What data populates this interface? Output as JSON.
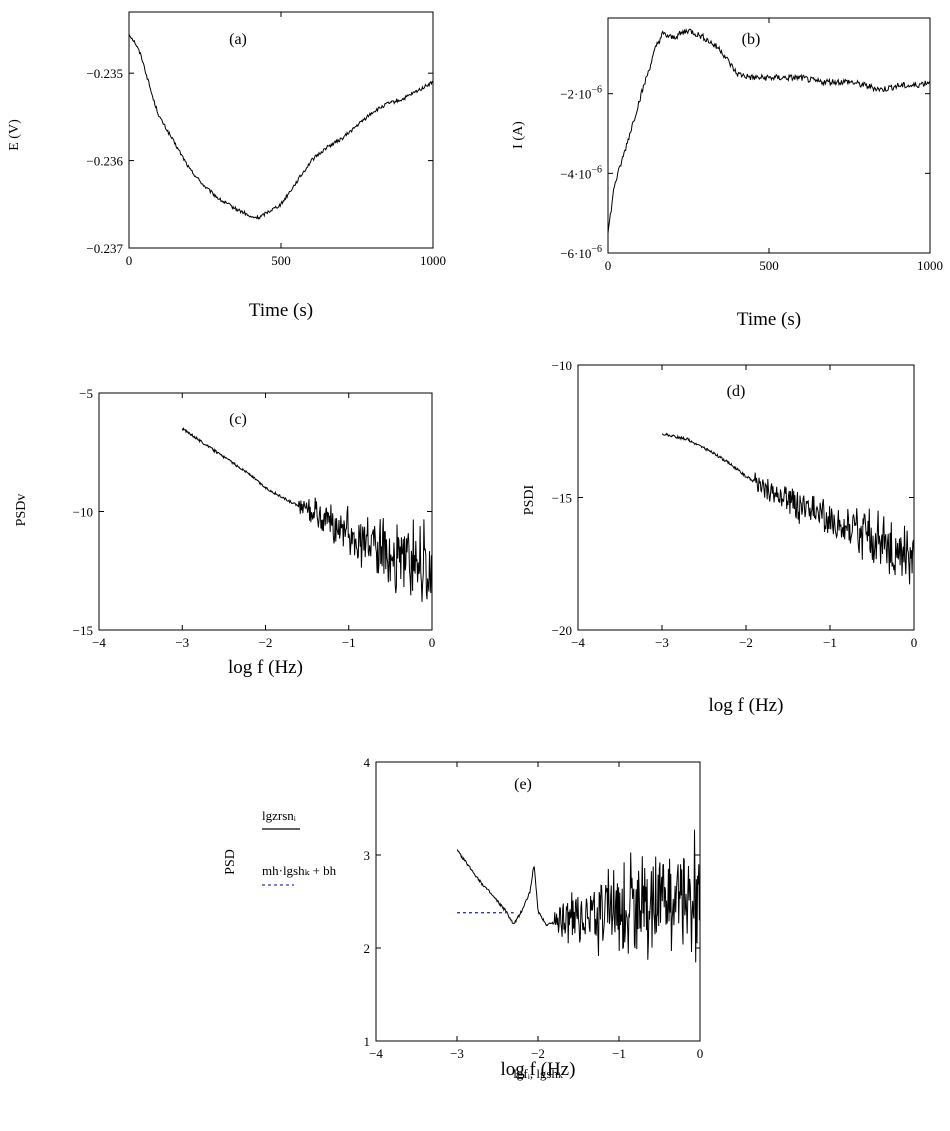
{
  "chart_data": [
    {
      "id": "a",
      "type": "line",
      "panel_label": "(a)",
      "xlabel": "Time (s)",
      "ylabel": "E (V)",
      "xlim": [
        0,
        1000
      ],
      "ylim": [
        -0.237,
        -0.2343
      ],
      "xticks": [
        0,
        500,
        1000
      ],
      "xtick_labels": [
        "0",
        "500",
        "1000"
      ],
      "yticks": [
        -0.237,
        -0.236,
        -0.235
      ],
      "ytick_labels": [
        "−0.237",
        "−0.236",
        "−0.235"
      ],
      "series": [
        {
          "values_x": [
            0,
            20,
            40,
            60,
            80,
            100,
            150,
            200,
            250,
            300,
            350,
            380,
            400,
            430,
            450,
            500,
            550,
            600,
            650,
            700,
            750,
            800,
            850,
            900,
            950,
            1000
          ],
          "values_y": [
            -0.23455,
            -0.23465,
            -0.2348,
            -0.23505,
            -0.2353,
            -0.2355,
            -0.2358,
            -0.2361,
            -0.2363,
            -0.23645,
            -0.23655,
            -0.2366,
            -0.23665,
            -0.23665,
            -0.2366,
            -0.2365,
            -0.23625,
            -0.236,
            -0.23585,
            -0.23575,
            -0.2356,
            -0.23545,
            -0.23535,
            -0.2353,
            -0.2352,
            -0.2351
          ],
          "noise": 2e-05
        }
      ]
    },
    {
      "id": "b",
      "type": "line",
      "panel_label": "(b)",
      "xlabel": "Time (s)",
      "ylabel": "I (A)",
      "xlim": [
        0,
        1000
      ],
      "ylim": [
        -6e-06,
        -1e-07
      ],
      "xticks": [
        0,
        500,
        1000
      ],
      "xtick_labels": [
        "0",
        "500",
        "1000"
      ],
      "yticks": [
        -6e-06,
        -4e-06,
        -2e-06
      ],
      "ytick_labels": [
        "−6·10",
        "−4·10",
        "−2·10"
      ],
      "ytick_exponent": "−6",
      "series": [
        {
          "values_x": [
            0,
            20,
            50,
            100,
            150,
            170,
            200,
            250,
            300,
            350,
            400,
            450,
            500,
            550,
            600,
            650,
            700,
            750,
            800,
            850,
            900,
            950,
            1000
          ],
          "values_y": [
            -5.5e-06,
            -4.3e-06,
            -3.5e-06,
            -2.1e-06,
            -8e-07,
            -5e-07,
            -6e-07,
            -4e-07,
            -6e-07,
            -9e-07,
            -1.5e-06,
            -1.6e-06,
            -1.6e-06,
            -1.6e-06,
            -1.6e-06,
            -1.7e-06,
            -1.7e-06,
            -1.7e-06,
            -1.8e-06,
            -1.9e-06,
            -1.8e-06,
            -1.8e-06,
            -1.7e-06
          ],
          "noise": 8e-08
        }
      ]
    },
    {
      "id": "c",
      "type": "line",
      "panel_label": "(c)",
      "xlabel": "log f (Hz)",
      "ylabel": "PSDv",
      "xlim": [
        -4,
        0
      ],
      "ylim": [
        -15,
        -5
      ],
      "xticks": [
        -4,
        -3,
        -2,
        -1,
        0
      ],
      "xtick_labels": [
        "−4",
        "−3",
        "−2",
        "−1",
        "0"
      ],
      "yticks": [
        -15,
        -10,
        -5
      ],
      "ytick_labels": [
        "−15",
        "−10",
        "−5"
      ],
      "series": [
        {
          "values_x": [
            -3,
            -2.5,
            -2.2,
            -2.0,
            -1.7,
            -1.3,
            -1.0,
            -0.5,
            0
          ],
          "values_y": [
            -6.5,
            -7.7,
            -8.4,
            -9.0,
            -9.6,
            -10.3,
            -10.9,
            -11.8,
            -12.2
          ],
          "noise_start": -1.6,
          "noise_amp": 2.2
        }
      ]
    },
    {
      "id": "d",
      "type": "line",
      "panel_label": "(d)",
      "xlabel": "log f (Hz)",
      "ylabel": "PSDI",
      "xlim": [
        -4,
        0
      ],
      "ylim": [
        -20,
        -10
      ],
      "xticks": [
        -4,
        -3,
        -2,
        -1,
        0
      ],
      "xtick_labels": [
        "−4",
        "−3",
        "−2",
        "−1",
        "0"
      ],
      "yticks": [
        -20,
        -15,
        -10
      ],
      "ytick_labels": [
        "−20",
        "−15",
        "−10"
      ],
      "series": [
        {
          "values_x": [
            -3,
            -2.7,
            -2.4,
            -2.2,
            -2.0,
            -1.7,
            -1.3,
            -1.0,
            -0.5,
            0
          ],
          "values_y": [
            -12.6,
            -12.8,
            -13.3,
            -13.7,
            -14.2,
            -14.8,
            -15.4,
            -15.9,
            -16.6,
            -17.2
          ],
          "noise_start": -1.9,
          "noise_amp": 1.6
        }
      ]
    },
    {
      "id": "e",
      "type": "line",
      "panel_label": "(e)",
      "xlabel": "lgfᵢ, lgshₖ",
      "xlabel2": "log f (Hz)",
      "ylabel": "PSD",
      "legend": [
        {
          "label": "lgzrsnᵢ",
          "style": "solid",
          "color": "#000000"
        },
        {
          "label": "mh·lgshₖ + bh",
          "style": "dotted",
          "color": "#3333cc"
        }
      ],
      "xlim": [
        -4,
        0
      ],
      "ylim": [
        1,
        4
      ],
      "xticks": [
        -4,
        -3,
        -2,
        -1,
        0
      ],
      "xtick_labels": [
        "−4",
        "−3",
        "−2",
        "−1",
        "0"
      ],
      "yticks": [
        1,
        2,
        3,
        4
      ],
      "ytick_labels": [
        "1",
        "2",
        "3",
        "4"
      ],
      "series": [
        {
          "values_x": [
            -3,
            -2.7,
            -2.4,
            -2.3,
            -2.2,
            -2.1,
            -2.05,
            -2.0,
            -1.9,
            -1.7,
            -1.4,
            -1.0,
            -0.5,
            0
          ],
          "values_y": [
            3.05,
            2.7,
            2.4,
            2.25,
            2.4,
            2.6,
            2.9,
            2.4,
            2.25,
            2.3,
            2.35,
            2.4,
            2.45,
            2.5
          ],
          "noise_start": -1.8,
          "noise_amp": 1.0
        },
        {
          "values_x": [
            -3,
            -2.3
          ],
          "values_y": [
            2.38,
            2.38
          ]
        }
      ]
    }
  ]
}
